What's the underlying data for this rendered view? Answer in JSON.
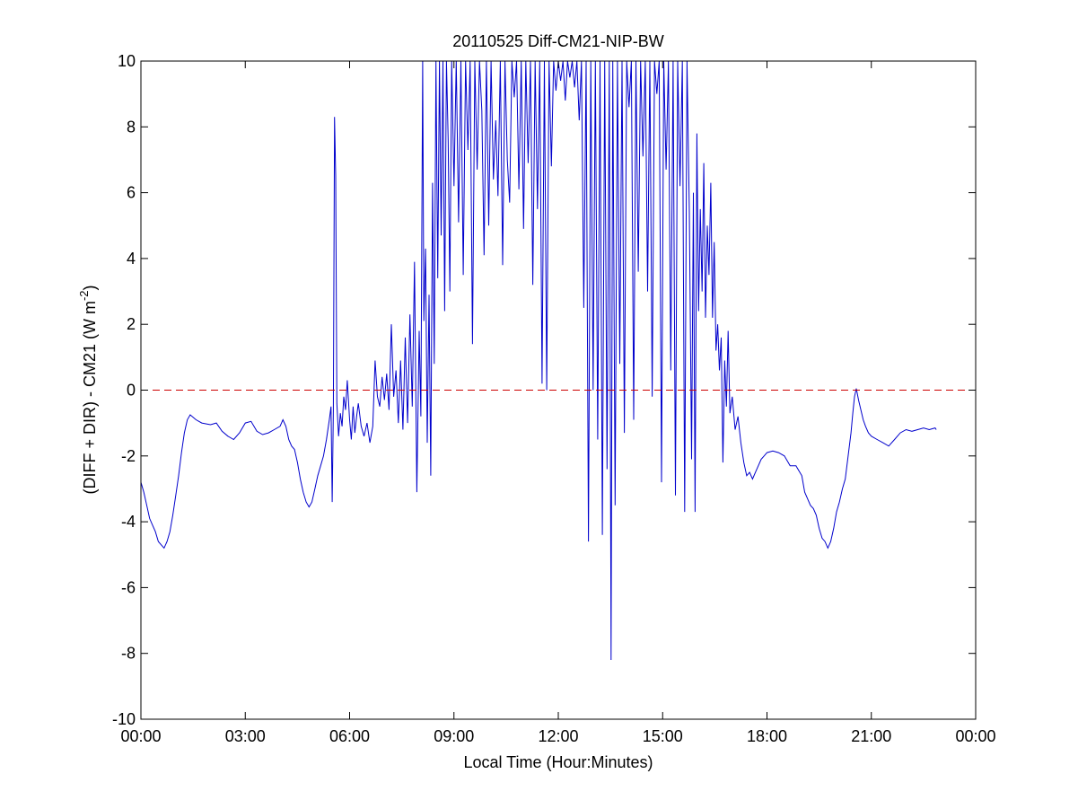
{
  "chart_data": {
    "type": "line",
    "title": "20110525 Diff-CM21-NIP-BW",
    "xlabel": "Local Time (Hour:Minutes)",
    "ylabel": {
      "prefix": "(DIFF + DIR) - CM21 (W m",
      "superscript": "-2",
      "suffix": ")"
    },
    "xlim": [
      "00:00",
      "24:00"
    ],
    "ylim": [
      -10,
      10
    ],
    "x_ticks": [
      "00:00",
      "03:00",
      "06:00",
      "09:00",
      "12:00",
      "15:00",
      "18:00",
      "21:00",
      "00:00"
    ],
    "y_ticks": [
      "-10",
      "-8",
      "-6",
      "-4",
      "-2",
      "0",
      "2",
      "4",
      "6",
      "8",
      "10"
    ],
    "grid": false,
    "series": [
      {
        "color": "#0000cc",
        "points": [
          [
            "00:00",
            -2.8
          ],
          [
            "00:05",
            -3.1
          ],
          [
            "00:10",
            -3.5
          ],
          [
            "00:15",
            -3.9
          ],
          [
            "00:20",
            -4.1
          ],
          [
            "00:25",
            -4.3
          ],
          [
            "00:30",
            -4.6
          ],
          [
            "00:35",
            -4.7
          ],
          [
            "00:40",
            -4.8
          ],
          [
            "00:45",
            -4.6
          ],
          [
            "00:50",
            -4.3
          ],
          [
            "00:55",
            -3.8
          ],
          [
            "01:00",
            -3.2
          ],
          [
            "01:05",
            -2.6
          ],
          [
            "01:10",
            -1.9
          ],
          [
            "01:15",
            -1.3
          ],
          [
            "01:20",
            -0.9
          ],
          [
            "01:25",
            -0.75
          ],
          [
            "01:35",
            -0.9
          ],
          [
            "01:45",
            -1.0
          ],
          [
            "02:00",
            -1.05
          ],
          [
            "02:10",
            -1.0
          ],
          [
            "02:20",
            -1.25
          ],
          [
            "02:30",
            -1.4
          ],
          [
            "02:40",
            -1.5
          ],
          [
            "02:50",
            -1.3
          ],
          [
            "03:00",
            -1.0
          ],
          [
            "03:10",
            -0.95
          ],
          [
            "03:20",
            -1.25
          ],
          [
            "03:30",
            -1.35
          ],
          [
            "03:40",
            -1.3
          ],
          [
            "03:50",
            -1.2
          ],
          [
            "04:00",
            -1.1
          ],
          [
            "04:05",
            -0.9
          ],
          [
            "04:10",
            -1.1
          ],
          [
            "04:15",
            -1.5
          ],
          [
            "04:20",
            -1.7
          ],
          [
            "04:25",
            -1.8
          ],
          [
            "04:30",
            -2.2
          ],
          [
            "04:35",
            -2.7
          ],
          [
            "04:40",
            -3.1
          ],
          [
            "04:45",
            -3.4
          ],
          [
            "04:50",
            -3.55
          ],
          [
            "04:55",
            -3.4
          ],
          [
            "05:00",
            -3.0
          ],
          [
            "05:05",
            -2.6
          ],
          [
            "05:10",
            -2.3
          ],
          [
            "05:15",
            -2.0
          ],
          [
            "05:20",
            -1.5
          ],
          [
            "05:25",
            -0.9
          ],
          [
            "05:28",
            -0.5
          ],
          [
            "05:30",
            -3.4
          ],
          [
            "05:32",
            -0.6
          ],
          [
            "05:34",
            8.3
          ],
          [
            "05:36",
            6.5
          ],
          [
            "05:38",
            -0.4
          ],
          [
            "05:41",
            -1.4
          ],
          [
            "05:44",
            -0.7
          ],
          [
            "05:47",
            -1.1
          ],
          [
            "05:50",
            -0.2
          ],
          [
            "05:53",
            -0.6
          ],
          [
            "05:56",
            0.3
          ],
          [
            "06:00",
            -0.9
          ],
          [
            "06:03",
            -1.5
          ],
          [
            "06:06",
            -0.5
          ],
          [
            "06:09",
            -1.3
          ],
          [
            "06:12",
            -0.8
          ],
          [
            "06:15",
            -0.4
          ],
          [
            "06:20",
            -1.1
          ],
          [
            "06:25",
            -1.4
          ],
          [
            "06:30",
            -1.0
          ],
          [
            "06:35",
            -1.6
          ],
          [
            "06:40",
            -1.1
          ],
          [
            "06:44",
            0.9
          ],
          [
            "06:48",
            -0.2
          ],
          [
            "06:52",
            -0.5
          ],
          [
            "06:56",
            0.4
          ],
          [
            "07:00",
            -0.3
          ],
          [
            "07:04",
            0.5
          ],
          [
            "07:08",
            -0.6
          ],
          [
            "07:12",
            2.0
          ],
          [
            "07:16",
            -0.2
          ],
          [
            "07:20",
            0.6
          ],
          [
            "07:24",
            -1.0
          ],
          [
            "07:28",
            0.9
          ],
          [
            "07:32",
            -1.2
          ],
          [
            "07:36",
            1.6
          ],
          [
            "07:40",
            -1.0
          ],
          [
            "07:44",
            2.3
          ],
          [
            "07:48",
            -0.5
          ],
          [
            "07:52",
            3.9
          ],
          [
            "07:56",
            -3.1
          ],
          [
            "08:00",
            1.8
          ],
          [
            "08:03",
            -0.8
          ],
          [
            "08:06",
            10
          ],
          [
            "08:08",
            2.1
          ],
          [
            "08:11",
            4.3
          ],
          [
            "08:14",
            -1.6
          ],
          [
            "08:17",
            2.9
          ],
          [
            "08:20",
            -2.6
          ],
          [
            "08:23",
            6.3
          ],
          [
            "08:26",
            0.8
          ],
          [
            "08:29",
            10
          ],
          [
            "08:32",
            3.4
          ],
          [
            "08:35",
            10
          ],
          [
            "08:38",
            4.7
          ],
          [
            "08:41",
            10
          ],
          [
            "08:44",
            2.4
          ],
          [
            "08:47",
            10
          ],
          [
            "08:50",
            7.6
          ],
          [
            "08:53",
            3.0
          ],
          [
            "08:56",
            10
          ],
          [
            "09:00",
            6.2
          ],
          [
            "09:04",
            10
          ],
          [
            "09:08",
            5.1
          ],
          [
            "09:12",
            10
          ],
          [
            "09:16",
            3.5
          ],
          [
            "09:20",
            10
          ],
          [
            "09:24",
            7.3
          ],
          [
            "09:28",
            10
          ],
          [
            "09:32",
            1.4
          ],
          [
            "09:36",
            10
          ],
          [
            "09:40",
            6.7
          ],
          [
            "09:44",
            10
          ],
          [
            "09:48",
            8.5
          ],
          [
            "09:52",
            4.1
          ],
          [
            "09:56",
            10
          ],
          [
            "10:00",
            5.0
          ],
          [
            "10:04",
            10
          ],
          [
            "10:08",
            6.4
          ],
          [
            "10:12",
            8.2
          ],
          [
            "10:16",
            5.9
          ],
          [
            "10:20",
            10
          ],
          [
            "10:24",
            3.8
          ],
          [
            "10:28",
            10
          ],
          [
            "10:32",
            7.0
          ],
          [
            "10:36",
            5.7
          ],
          [
            "10:40",
            10
          ],
          [
            "10:44",
            8.9
          ],
          [
            "10:48",
            10
          ],
          [
            "10:52",
            6.1
          ],
          [
            "10:56",
            10
          ],
          [
            "11:00",
            4.9
          ],
          [
            "11:04",
            10
          ],
          [
            "11:08",
            6.9
          ],
          [
            "11:12",
            10
          ],
          [
            "11:16",
            3.2
          ],
          [
            "11:20",
            10
          ],
          [
            "11:24",
            5.5
          ],
          [
            "11:28",
            10
          ],
          [
            "11:32",
            0.2
          ],
          [
            "11:36",
            10
          ],
          [
            "11:40",
            0.0
          ],
          [
            "11:44",
            10
          ],
          [
            "11:48",
            6.8
          ],
          [
            "11:52",
            10
          ],
          [
            "11:56",
            9.1
          ],
          [
            "12:00",
            10
          ],
          [
            "12:04",
            9.4
          ],
          [
            "12:08",
            10
          ],
          [
            "12:12",
            8.8
          ],
          [
            "12:16",
            10
          ],
          [
            "12:20",
            9.5
          ],
          [
            "12:24",
            10
          ],
          [
            "12:28",
            9.2
          ],
          [
            "12:32",
            10
          ],
          [
            "12:36",
            8.2
          ],
          [
            "12:40",
            10
          ],
          [
            "12:44",
            2.5
          ],
          [
            "12:48",
            10
          ],
          [
            "12:52",
            -4.6
          ],
          [
            "12:56",
            10
          ],
          [
            "13:00",
            0.0
          ],
          [
            "13:04",
            10
          ],
          [
            "13:08",
            -1.5
          ],
          [
            "13:12",
            10
          ],
          [
            "13:16",
            -4.4
          ],
          [
            "13:20",
            10
          ],
          [
            "13:24",
            -2.4
          ],
          [
            "13:28",
            10
          ],
          [
            "13:31",
            -8.2
          ],
          [
            "13:34",
            10
          ],
          [
            "13:38",
            -3.5
          ],
          [
            "13:42",
            10
          ],
          [
            "13:46",
            0.8
          ],
          [
            "13:50",
            10
          ],
          [
            "13:54",
            -1.3
          ],
          [
            "13:58",
            10
          ],
          [
            "14:02",
            8.6
          ],
          [
            "14:06",
            10
          ],
          [
            "14:10",
            -0.9
          ],
          [
            "14:14",
            10
          ],
          [
            "14:18",
            3.6
          ],
          [
            "14:22",
            10
          ],
          [
            "14:26",
            7.1
          ],
          [
            "14:30",
            10
          ],
          [
            "14:34",
            3.0
          ],
          [
            "14:38",
            10
          ],
          [
            "14:42",
            -0.2
          ],
          [
            "14:46",
            10
          ],
          [
            "14:50",
            9.0
          ],
          [
            "14:54",
            10
          ],
          [
            "14:58",
            -2.8
          ],
          [
            "15:02",
            10
          ],
          [
            "15:06",
            6.7
          ],
          [
            "15:10",
            10
          ],
          [
            "15:14",
            0.6
          ],
          [
            "15:18",
            10
          ],
          [
            "15:22",
            -3.2
          ],
          [
            "15:26",
            10
          ],
          [
            "15:30",
            6.2
          ],
          [
            "15:34",
            10
          ],
          [
            "15:38",
            -3.7
          ],
          [
            "15:42",
            10
          ],
          [
            "15:46",
            5.4
          ],
          [
            "15:50",
            -2.1
          ],
          [
            "15:53",
            6.0
          ],
          [
            "15:56",
            -3.7
          ],
          [
            "15:59",
            7.8
          ],
          [
            "16:02",
            2.4
          ],
          [
            "16:05",
            5.5
          ],
          [
            "16:08",
            3.0
          ],
          [
            "16:11",
            6.9
          ],
          [
            "16:14",
            2.2
          ],
          [
            "16:17",
            5.0
          ],
          [
            "16:20",
            3.5
          ],
          [
            "16:23",
            6.3
          ],
          [
            "16:26",
            2.2
          ],
          [
            "16:29",
            4.5
          ],
          [
            "16:32",
            1.2
          ],
          [
            "16:35",
            2.0
          ],
          [
            "16:38",
            0.6
          ],
          [
            "16:41",
            1.6
          ],
          [
            "16:44",
            -2.2
          ],
          [
            "16:47",
            0.9
          ],
          [
            "16:50",
            -0.5
          ],
          [
            "16:53",
            1.8
          ],
          [
            "16:56",
            -0.7
          ],
          [
            "17:00",
            -0.2
          ],
          [
            "17:05",
            -1.2
          ],
          [
            "17:10",
            -0.8
          ],
          [
            "17:15",
            -1.6
          ],
          [
            "17:20",
            -2.2
          ],
          [
            "17:25",
            -2.6
          ],
          [
            "17:30",
            -2.5
          ],
          [
            "17:35",
            -2.7
          ],
          [
            "17:40",
            -2.5
          ],
          [
            "17:45",
            -2.3
          ],
          [
            "17:50",
            -2.1
          ],
          [
            "17:55",
            -2.0
          ],
          [
            "18:00",
            -1.9
          ],
          [
            "18:10",
            -1.85
          ],
          [
            "18:20",
            -1.9
          ],
          [
            "18:30",
            -2.0
          ],
          [
            "18:40",
            -2.3
          ],
          [
            "18:50",
            -2.3
          ],
          [
            "19:00",
            -2.6
          ],
          [
            "19:05",
            -3.1
          ],
          [
            "19:10",
            -3.3
          ],
          [
            "19:15",
            -3.5
          ],
          [
            "19:20",
            -3.6
          ],
          [
            "19:25",
            -3.8
          ],
          [
            "19:30",
            -4.2
          ],
          [
            "19:35",
            -4.5
          ],
          [
            "19:40",
            -4.6
          ],
          [
            "19:45",
            -4.8
          ],
          [
            "19:50",
            -4.6
          ],
          [
            "19:55",
            -4.2
          ],
          [
            "20:00",
            -3.7
          ],
          [
            "20:05",
            -3.4
          ],
          [
            "20:10",
            -3.0
          ],
          [
            "20:15",
            -2.7
          ],
          [
            "20:20",
            -2.0
          ],
          [
            "20:25",
            -1.3
          ],
          [
            "20:28",
            -0.7
          ],
          [
            "20:31",
            -0.2
          ],
          [
            "20:34",
            0.05
          ],
          [
            "20:38",
            -0.3
          ],
          [
            "20:42",
            -0.6
          ],
          [
            "20:46",
            -0.9
          ],
          [
            "20:50",
            -1.1
          ],
          [
            "20:55",
            -1.3
          ],
          [
            "21:00",
            -1.4
          ],
          [
            "21:10",
            -1.5
          ],
          [
            "21:20",
            -1.6
          ],
          [
            "21:30",
            -1.7
          ],
          [
            "21:40",
            -1.5
          ],
          [
            "21:50",
            -1.3
          ],
          [
            "22:00",
            -1.2
          ],
          [
            "22:10",
            -1.25
          ],
          [
            "22:20",
            -1.2
          ],
          [
            "22:30",
            -1.15
          ],
          [
            "22:40",
            -1.2
          ],
          [
            "22:50",
            -1.15
          ],
          [
            "22:52",
            -1.2
          ]
        ]
      }
    ],
    "reference_line": {
      "y": 0,
      "color": "#cc0000",
      "style": "dashed"
    }
  }
}
